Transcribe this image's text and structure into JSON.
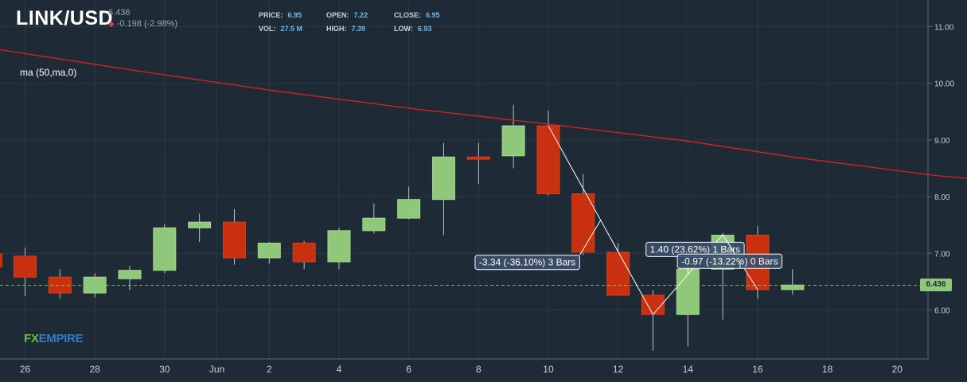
{
  "header": {
    "symbol": "LINK/USD",
    "last_price": "6.436",
    "change": "-0.198 (-2.98%)",
    "price_label": "PRICE:",
    "price_value": "6.95",
    "vol_label": "VOL:",
    "vol_value": "27.5 M",
    "open_label": "OPEN:",
    "open_value": "7.22",
    "high_label": "HIGH:",
    "high_value": "7.39",
    "close_label": "CLOSE:",
    "close_value": "6.95",
    "low_label": "LOW:",
    "low_value": "6.93"
  },
  "indicator_label": "ma (50,ma,0)",
  "logo": {
    "part1": "FX",
    "part2": "EMPIRE"
  },
  "current_price_tag": "6.436",
  "colors": {
    "background": "#1e2a36",
    "up": "#8fc87a",
    "down": "#c9300f",
    "ma": "#e02020",
    "grid": "#2a3846",
    "text": "#c8d0d8"
  },
  "chart_data": {
    "type": "candlestick",
    "title": "LINK/USD",
    "ylim": [
      5.0,
      11.4
    ],
    "y_ticks": [
      "6.00",
      "7.00",
      "8.00",
      "9.00",
      "10.00",
      "11.00"
    ],
    "x_ticks": [
      "26",
      "28",
      "30",
      "Jun",
      "2",
      "4",
      "6",
      "8",
      "10",
      "12",
      "14",
      "16",
      "18",
      "20"
    ],
    "grid": true,
    "candles": [
      {
        "open": 6.95,
        "high": 7.1,
        "low": 6.25,
        "close": 6.58
      },
      {
        "open": 6.58,
        "high": 6.72,
        "low": 6.2,
        "close": 6.3
      },
      {
        "open": 6.3,
        "high": 6.65,
        "low": 6.22,
        "close": 6.58
      },
      {
        "open": 6.55,
        "high": 6.78,
        "low": 6.35,
        "close": 6.7
      },
      {
        "open": 6.7,
        "high": 7.52,
        "low": 6.65,
        "close": 7.45
      },
      {
        "open": 7.45,
        "high": 7.7,
        "low": 7.2,
        "close": 7.55
      },
      {
        "open": 7.55,
        "high": 7.78,
        "low": 6.8,
        "close": 6.92
      },
      {
        "open": 6.92,
        "high": 7.2,
        "low": 6.82,
        "close": 7.18
      },
      {
        "open": 7.18,
        "high": 7.22,
        "low": 6.72,
        "close": 6.85
      },
      {
        "open": 6.85,
        "high": 7.45,
        "low": 6.72,
        "close": 7.4
      },
      {
        "open": 7.4,
        "high": 7.88,
        "low": 7.35,
        "close": 7.62
      },
      {
        "open": 7.62,
        "high": 8.18,
        "low": 7.6,
        "close": 7.95
      },
      {
        "open": 7.95,
        "high": 8.95,
        "low": 7.32,
        "close": 8.7
      },
      {
        "open": 8.7,
        "high": 8.95,
        "low": 8.22,
        "close": 8.66
      },
      {
        "open": 8.72,
        "high": 9.62,
        "low": 8.5,
        "close": 9.25
      },
      {
        "open": 9.25,
        "high": 9.52,
        "low": 8.02,
        "close": 8.05
      },
      {
        "open": 8.05,
        "high": 8.4,
        "low": 6.97,
        "close": 7.02
      },
      {
        "open": 7.02,
        "high": 7.18,
        "low": 6.26,
        "close": 6.26
      },
      {
        "open": 6.26,
        "high": 6.35,
        "low": 5.28,
        "close": 5.92
      },
      {
        "open": 5.92,
        "high": 6.75,
        "low": 5.36,
        "close": 6.72
      },
      {
        "open": 6.72,
        "high": 7.36,
        "low": 5.83,
        "close": 7.32
      },
      {
        "open": 7.32,
        "high": 7.48,
        "low": 6.2,
        "close": 6.36
      },
      {
        "open": 6.36,
        "high": 6.72,
        "low": 6.27,
        "close": 6.44
      }
    ],
    "first_candle_partial": {
      "open": 7.0,
      "high": 7.0,
      "low": 6.75,
      "close": 6.75
    },
    "moving_average": {
      "name": "ma (50,ma,0)",
      "points": [
        [
          -4.6,
          11.05
        ],
        [
          -1,
          10.62
        ],
        [
          3,
          10.24
        ],
        [
          7,
          9.88
        ],
        [
          11,
          9.56
        ],
        [
          15,
          9.28
        ],
        [
          19,
          8.98
        ],
        [
          22,
          8.7
        ],
        [
          26,
          8.38
        ],
        [
          30,
          8.14
        ],
        [
          33,
          7.98
        ]
      ]
    },
    "annotations": [
      {
        "text": "-3.34 (-36.10%) 3 Bars",
        "from": [
          15,
          9.25
        ],
        "to": [
          18,
          5.92
        ],
        "box_at": [
          12.9,
          6.84
        ]
      },
      {
        "text": "1.40 (23.62%) 1 Bars",
        "from": [
          18,
          5.92
        ],
        "to": [
          20,
          7.33
        ],
        "box_at": [
          17.8,
          7.07
        ]
      },
      {
        "text": "-0.97 (-13.22%) 0 Bars",
        "from": [
          20,
          7.33
        ],
        "to": [
          21,
          6.36
        ],
        "box_at": [
          18.7,
          6.86
        ]
      }
    ],
    "current_price": 6.436
  }
}
